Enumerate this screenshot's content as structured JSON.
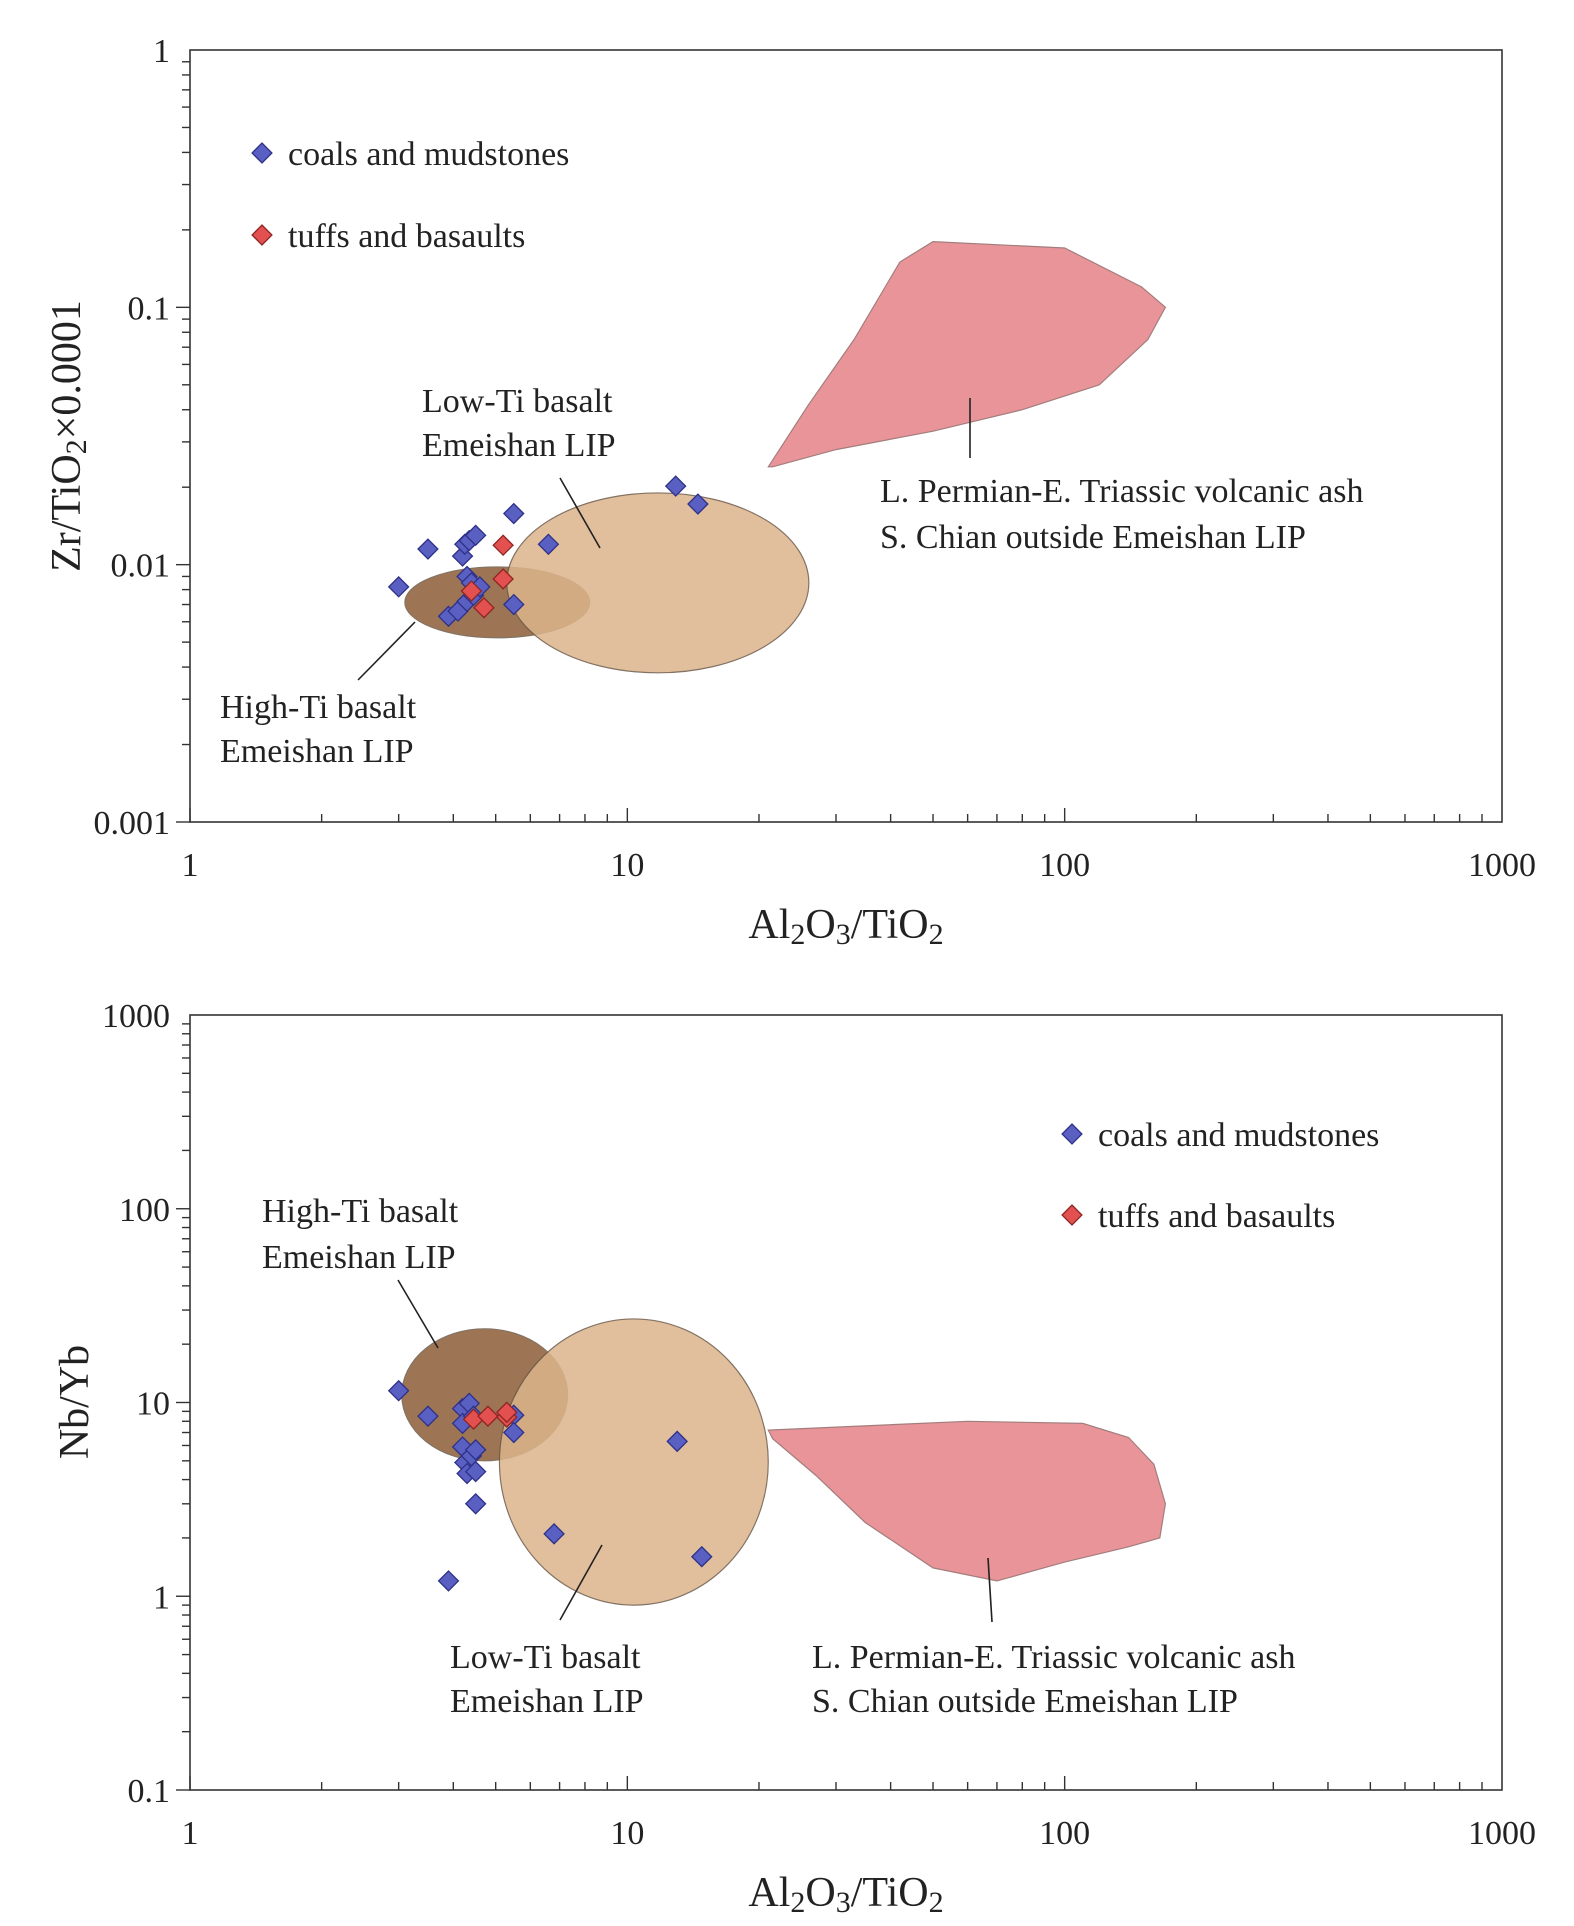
{
  "chart_data": [
    {
      "type": "scatter",
      "scale": "log-log",
      "xlabel": "Al2O3/TiO2",
      "ylabel": "Zr/TiO2×0.0001",
      "xlim": [
        1,
        1000
      ],
      "ylim": [
        0.001,
        1
      ],
      "xtick_labels": [
        "1",
        "10",
        "100",
        "1000"
      ],
      "ytick_labels": [
        "0.001",
        "0.01",
        "0.1",
        "1"
      ],
      "legend": [
        {
          "label": "coals and mudstones",
          "color": "#5a5fc2"
        },
        {
          "label": "tuffs and basaults",
          "color": "#e2504f"
        }
      ],
      "regions": [
        {
          "name": "high-ti-basalt",
          "label": [
            "High-Ti basalt",
            "Emeishan LIP"
          ],
          "color": "#8c5e38",
          "x_range": [
            3.1,
            8.2
          ],
          "y_range": [
            0.0052,
            0.0098
          ]
        },
        {
          "name": "low-ti-basalt",
          "label": [
            "Low-Ti basalt",
            "Emeishan LIP"
          ],
          "color": "#dcb58c",
          "x_range": [
            5.3,
            26
          ],
          "y_range": [
            0.0038,
            0.019
          ]
        },
        {
          "name": "volcanic-ash",
          "label": [
            "L. Permian-E. Triassic volcanic ash",
            "S. Chian outside Emeishan LIP"
          ],
          "color": "#e7898d",
          "outline": [
            [
              21,
              0.024
            ],
            [
              26,
              0.042
            ],
            [
              33,
              0.075
            ],
            [
              42,
              0.15
            ],
            [
              50,
              0.18
            ],
            [
              100,
              0.17
            ],
            [
              150,
              0.12
            ],
            [
              170,
              0.1
            ],
            [
              155,
              0.075
            ],
            [
              120,
              0.05
            ],
            [
              80,
              0.04
            ],
            [
              50,
              0.033
            ],
            [
              30,
              0.028
            ],
            [
              21.5,
              0.024
            ]
          ]
        }
      ],
      "series": [
        {
          "name": "coals and mudstones",
          "color": "#5a5fc2",
          "points": [
            [
              3.0,
              0.0082
            ],
            [
              3.5,
              0.0115
            ],
            [
              3.9,
              0.0063
            ],
            [
              4.1,
              0.0066
            ],
            [
              4.2,
              0.0108
            ],
            [
              4.25,
              0.012
            ],
            [
              4.3,
              0.0072
            ],
            [
              4.3,
              0.009
            ],
            [
              4.35,
              0.0124
            ],
            [
              4.4,
              0.0085
            ],
            [
              4.45,
              0.0076
            ],
            [
              4.5,
              0.013
            ],
            [
              4.6,
              0.0082
            ],
            [
              5.5,
              0.0158
            ],
            [
              5.5,
              0.007
            ],
            [
              6.6,
              0.012
            ],
            [
              12.9,
              0.0202
            ],
            [
              14.5,
              0.0172
            ]
          ]
        },
        {
          "name": "tuffs and basaults",
          "color": "#e2504f",
          "points": [
            [
              4.4,
              0.0079
            ],
            [
              4.7,
              0.0068
            ],
            [
              5.2,
              0.0119
            ],
            [
              5.2,
              0.0088
            ]
          ]
        }
      ]
    },
    {
      "type": "scatter",
      "scale": "log-log",
      "xlabel": "Al2O3/TiO2",
      "ylabel": "Nb/Yb",
      "xlim": [
        1,
        1000
      ],
      "ylim": [
        0.1,
        1000
      ],
      "xtick_labels": [
        "1",
        "10",
        "100",
        "1000"
      ],
      "ytick_labels": [
        "0.1",
        "1",
        "10",
        "100",
        "1000"
      ],
      "legend": [
        {
          "label": "coals and mudstones",
          "color": "#5a5fc2"
        },
        {
          "label": "tuffs and basaults",
          "color": "#e2504f"
        }
      ],
      "regions": [
        {
          "name": "high-ti-basalt",
          "label": [
            "High-Ti basalt",
            "Emeishan LIP"
          ],
          "color": "#8c5e38",
          "x_range": [
            3.05,
            7.3
          ],
          "y_range": [
            5,
            24
          ]
        },
        {
          "name": "low-ti-basalt",
          "label": [
            "Low-Ti basalt",
            "Emeishan LIP"
          ],
          "color": "#dcb58c",
          "x_range": [
            5.1,
            21
          ],
          "y_range": [
            0.9,
            27
          ]
        },
        {
          "name": "volcanic-ash",
          "label": [
            "L. Permian-E. Triassic volcanic ash",
            "S. Chian outside Emeishan LIP"
          ],
          "color": "#e7898d",
          "outline": [
            [
              21,
              7.2
            ],
            [
              60,
              8.0
            ],
            [
              110,
              7.8
            ],
            [
              140,
              6.6
            ],
            [
              160,
              4.8
            ],
            [
              170,
              3.0
            ],
            [
              165,
              2.0
            ],
            [
              140,
              1.8
            ],
            [
              100,
              1.5
            ],
            [
              70,
              1.2
            ],
            [
              50,
              1.4
            ],
            [
              35,
              2.4
            ],
            [
              27,
              4.2
            ],
            [
              21.5,
              6.5
            ]
          ]
        }
      ],
      "series": [
        {
          "name": "coals and mudstones",
          "color": "#5a5fc2",
          "points": [
            [
              3.0,
              11.5
            ],
            [
              3.5,
              8.5
            ],
            [
              3.9,
              1.2
            ],
            [
              4.2,
              9.3
            ],
            [
              4.2,
              7.8
            ],
            [
              4.2,
              5.9
            ],
            [
              4.25,
              4.9
            ],
            [
              4.3,
              4.3
            ],
            [
              4.35,
              9.9
            ],
            [
              4.4,
              5.3
            ],
            [
              4.45,
              8.5
            ],
            [
              4.5,
              5.7
            ],
            [
              4.5,
              4.4
            ],
            [
              4.5,
              3.0
            ],
            [
              5.5,
              8.6
            ],
            [
              5.5,
              7.0
            ],
            [
              6.8,
              2.1
            ],
            [
              13.0,
              6.3
            ],
            [
              14.8,
              1.6
            ]
          ]
        },
        {
          "name": "tuffs and basaults",
          "color": "#e2504f",
          "points": [
            [
              4.45,
              8.2
            ],
            [
              4.8,
              8.5
            ],
            [
              5.3,
              8.4
            ],
            [
              5.3,
              8.9
            ]
          ]
        }
      ]
    }
  ]
}
